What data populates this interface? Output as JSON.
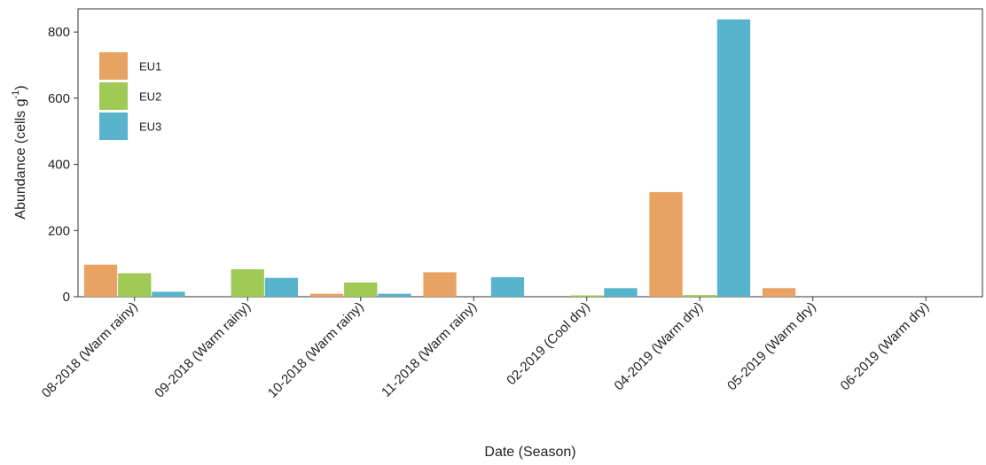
{
  "chart_data": {
    "type": "bar",
    "title": "",
    "xlabel": "Date (Season)",
    "ylabel": "Abundance (cells g",
    "ylabel_sup": "-1",
    "ylabel_close": ")",
    "ylim": [
      0,
      870
    ],
    "yticks": [
      0,
      200,
      400,
      600,
      800
    ],
    "categories": [
      "08-2018 (Warm rainy)",
      "09-2018 (Warm rainy)",
      "10-2018 (Warm rainy)",
      "11-2018 (Warm rainy)",
      "02-2019 (Cool dry)",
      "04-2019 (Warm dry)",
      "05-2019 (Warm dry)",
      "06-2019 (Warm dry)"
    ],
    "series": [
      {
        "name": "EU1",
        "color": "#E8A262",
        "values": [
          97,
          0,
          9,
          74,
          0,
          316,
          26,
          0
        ]
      },
      {
        "name": "EU2",
        "color": "#9ECA55",
        "values": [
          71,
          83,
          43,
          0,
          4,
          5,
          0,
          0
        ]
      },
      {
        "name": "EU3",
        "color": "#57B4CC",
        "values": [
          15,
          57,
          9,
          59,
          26,
          838,
          0,
          0
        ]
      }
    ],
    "legend_position": "top-left",
    "grid": false
  }
}
